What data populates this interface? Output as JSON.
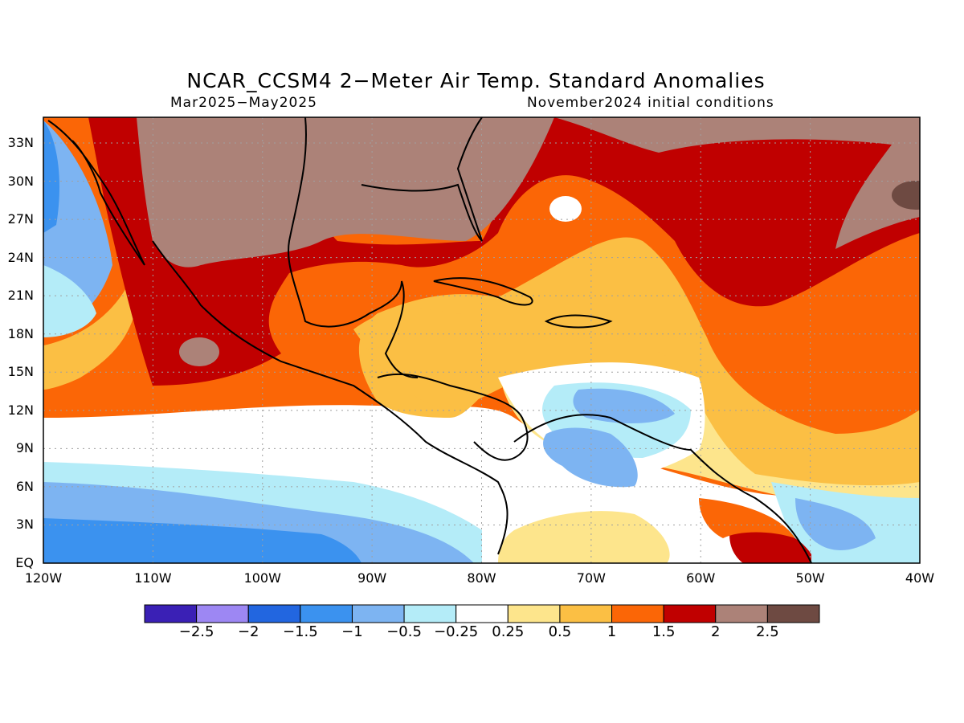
{
  "title": "NCAR_CCSM4 2−Meter Air Temp. Standard Anomalies",
  "subtitle_left": "Mar2025−May2025",
  "subtitle_right": "November2024 initial conditions",
  "y_ticks": [
    "33N",
    "30N",
    "27N",
    "24N",
    "21N",
    "18N",
    "15N",
    "12N",
    "9N",
    "6N",
    "3N",
    "EQ"
  ],
  "x_ticks": [
    "120W",
    "110W",
    "100W",
    "90W",
    "80W",
    "70W",
    "60W",
    "50W",
    "40W"
  ],
  "colorbar": {
    "labels": [
      "−2.5",
      "−2",
      "−1.5",
      "−1",
      "−0.5",
      "−0.25",
      "0.25",
      "0.5",
      "1",
      "1.5",
      "2",
      "2.5"
    ],
    "colors": [
      "#3a20b5",
      "#9d87f3",
      "#2266e0",
      "#3b92ef",
      "#7db4f2",
      "#b4ecf8",
      "#ffffff",
      "#fde58c",
      "#fbbf44",
      "#fb6606",
      "#c00000",
      "#ac8278",
      "#6e4a42"
    ]
  }
}
